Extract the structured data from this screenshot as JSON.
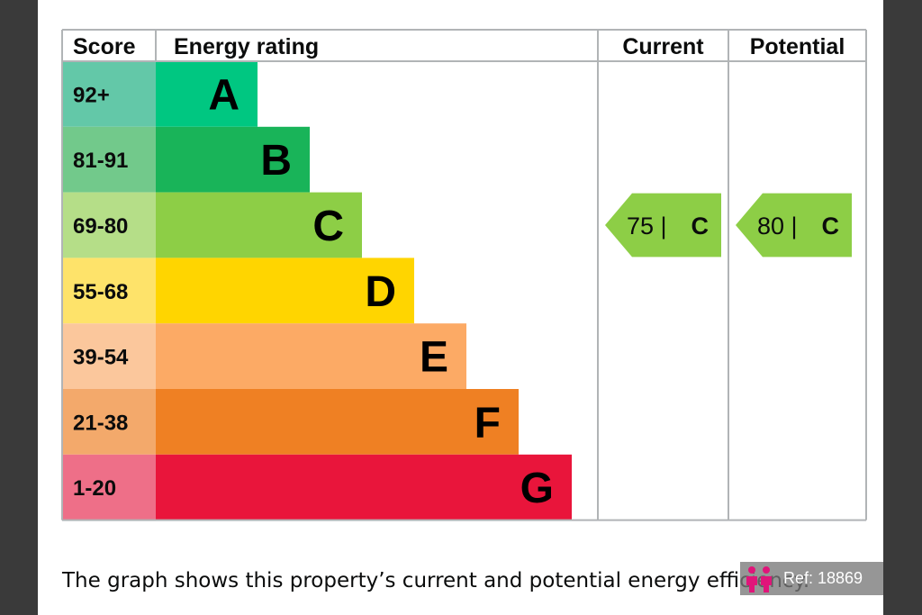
{
  "chart_data": {
    "type": "bar",
    "headers": {
      "score": "Score",
      "rating": "Energy rating",
      "current": "Current",
      "potential": "Potential"
    },
    "bands": [
      {
        "letter": "A",
        "range": "92+",
        "color": "#00c781",
        "score_color": "#63c8a8"
      },
      {
        "letter": "B",
        "range": "81-91",
        "color": "#19b459",
        "score_color": "#72c98b"
      },
      {
        "letter": "C",
        "range": "69-80",
        "color": "#8dce46",
        "score_color": "#b5de88"
      },
      {
        "letter": "D",
        "range": "55-68",
        "color": "#ffd500",
        "score_color": "#fee36a"
      },
      {
        "letter": "E",
        "range": "39-54",
        "color": "#fcaa65",
        "score_color": "#fbc79c"
      },
      {
        "letter": "F",
        "range": "21-38",
        "color": "#ef8023",
        "score_color": "#f3a96b"
      },
      {
        "letter": "G",
        "range": "1-20",
        "color": "#e9153b",
        "score_color": "#ee6f88"
      }
    ],
    "current": {
      "value": 75,
      "band": "C",
      "label": "75 |",
      "letter": "C"
    },
    "potential": {
      "value": 80,
      "band": "C",
      "label": "80 |",
      "letter": "C"
    },
    "pointer_color": "#8dce46"
  },
  "caption": "The graph shows this property’s current and potential energy efficiency.",
  "badge": {
    "ref": "Ref: 18869",
    "icon": "people-logo-icon",
    "icon_color": "#e0157a"
  }
}
